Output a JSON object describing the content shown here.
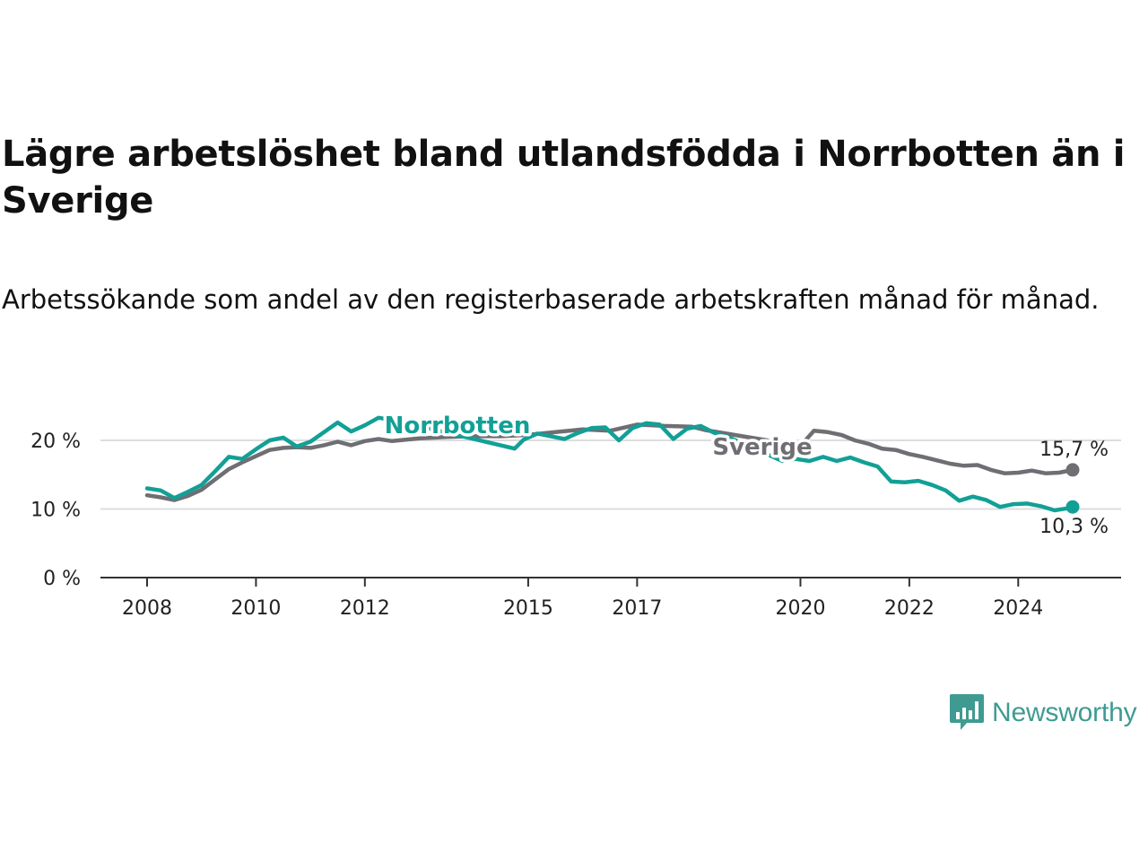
{
  "title": "Lägre arbetslöshet bland utlandsfödda i Norrbotten än i Sverige",
  "subtitle": "Arbetssökande som andel av den registerbaserade arbetskraften månad för månad.",
  "brand": {
    "name": "Newsworthy",
    "color": "#3f9b92",
    "icon": "newsworthy-logo-icon"
  },
  "colors": {
    "Norrbotten": "#12a096",
    "Sverige": "#6f6e73",
    "grid": "#dddddd",
    "axis": "#333333"
  },
  "chart_data": {
    "type": "line",
    "title": "Lägre arbetslöshet bland utlandsfödda i Norrbotten än i Sverige",
    "subtitle": "Arbetssökande som andel av den registerbaserade arbetskraften månad för månad.",
    "xlabel": "",
    "ylabel": "",
    "x_ticks": [
      "2008",
      "2010",
      "2012",
      "2015",
      "2017",
      "2020",
      "2022",
      "2024"
    ],
    "y_ticks": [
      "0 %",
      "10 %",
      "20 %"
    ],
    "ylim": [
      0,
      25
    ],
    "grid": "horizontal",
    "legend": "inline labels",
    "series": [
      {
        "name": "Norrbotten",
        "end_label": "10,3 %",
        "points": [
          [
            "2008-01",
            13.0
          ],
          [
            "2008-04",
            12.7
          ],
          [
            "2008-07",
            11.6
          ],
          [
            "2008-10",
            12.5
          ],
          [
            "2009-01",
            13.5
          ],
          [
            "2009-04",
            15.5
          ],
          [
            "2009-07",
            17.6
          ],
          [
            "2009-10",
            17.3
          ],
          [
            "2010-01",
            18.7
          ],
          [
            "2010-04",
            20.0
          ],
          [
            "2010-07",
            20.4
          ],
          [
            "2010-10",
            19.1
          ],
          [
            "2011-01",
            19.8
          ],
          [
            "2011-04",
            21.2
          ],
          [
            "2011-07",
            22.6
          ],
          [
            "2011-10",
            21.3
          ],
          [
            "2012-01",
            22.2
          ],
          [
            "2012-04",
            23.3
          ],
          [
            "2012-07",
            23.0
          ],
          [
            "2014-10",
            18.8
          ],
          [
            "2014-12",
            20.1
          ],
          [
            "2015-03",
            21.0
          ],
          [
            "2015-06",
            20.6
          ],
          [
            "2015-09",
            20.2
          ],
          [
            "2015-12",
            21.1
          ],
          [
            "2016-03",
            21.8
          ],
          [
            "2016-06",
            21.9
          ],
          [
            "2016-09",
            20.0
          ],
          [
            "2016-12",
            21.8
          ],
          [
            "2017-03",
            22.5
          ],
          [
            "2017-06",
            22.3
          ],
          [
            "2017-09",
            20.2
          ],
          [
            "2017-12",
            21.7
          ],
          [
            "2018-03",
            22.1
          ],
          [
            "2018-06",
            21.1
          ],
          [
            "2018-09",
            20.5
          ],
          [
            "2019-09",
            17.0
          ],
          [
            "2019-12",
            17.3
          ],
          [
            "2020-03",
            17.0
          ],
          [
            "2020-06",
            17.6
          ],
          [
            "2020-09",
            17.0
          ],
          [
            "2020-12",
            17.5
          ],
          [
            "2021-03",
            16.8
          ],
          [
            "2021-06",
            16.2
          ],
          [
            "2021-09",
            14.0
          ],
          [
            "2021-12",
            13.9
          ],
          [
            "2022-03",
            14.1
          ],
          [
            "2022-06",
            13.5
          ],
          [
            "2022-09",
            12.7
          ],
          [
            "2022-12",
            11.2
          ],
          [
            "2023-03",
            11.8
          ],
          [
            "2023-06",
            11.3
          ],
          [
            "2023-09",
            10.3
          ],
          [
            "2023-12",
            10.7
          ],
          [
            "2024-03",
            10.8
          ],
          [
            "2024-06",
            10.4
          ],
          [
            "2024-09",
            9.8
          ],
          [
            "2024-12",
            10.1
          ],
          [
            "2025-01",
            10.3
          ]
        ]
      },
      {
        "name": "Sverige",
        "end_label": "15,7 %",
        "points": [
          [
            "2008-01",
            12.0
          ],
          [
            "2008-04",
            11.7
          ],
          [
            "2008-07",
            11.3
          ],
          [
            "2008-10",
            11.9
          ],
          [
            "2009-01",
            12.8
          ],
          [
            "2009-04",
            14.3
          ],
          [
            "2009-07",
            15.8
          ],
          [
            "2009-10",
            16.8
          ],
          [
            "2010-01",
            17.7
          ],
          [
            "2010-04",
            18.6
          ],
          [
            "2010-07",
            18.9
          ],
          [
            "2010-10",
            19.0
          ],
          [
            "2011-01",
            18.9
          ],
          [
            "2011-04",
            19.3
          ],
          [
            "2011-07",
            19.8
          ],
          [
            "2011-10",
            19.3
          ],
          [
            "2012-01",
            19.9
          ],
          [
            "2012-04",
            20.2
          ],
          [
            "2012-07",
            19.9
          ],
          [
            "2013-01",
            20.3
          ],
          [
            "2013-07",
            20.5
          ],
          [
            "2014-01",
            20.6
          ],
          [
            "2014-07",
            20.6
          ],
          [
            "2015-01",
            20.8
          ],
          [
            "2015-07",
            21.2
          ],
          [
            "2016-01",
            21.6
          ],
          [
            "2016-07",
            21.4
          ],
          [
            "2017-01",
            22.3
          ],
          [
            "2017-07",
            22.1
          ],
          [
            "2018-01",
            22.0
          ],
          [
            "2018-04",
            21.5
          ],
          [
            "2020-01",
            19.2
          ],
          [
            "2020-04",
            21.4
          ],
          [
            "2020-07",
            21.2
          ],
          [
            "2020-10",
            20.8
          ],
          [
            "2021-01",
            20.0
          ],
          [
            "2021-04",
            19.5
          ],
          [
            "2021-07",
            18.8
          ],
          [
            "2021-10",
            18.6
          ],
          [
            "2022-01",
            18.0
          ],
          [
            "2022-04",
            17.6
          ],
          [
            "2022-07",
            17.1
          ],
          [
            "2022-10",
            16.6
          ],
          [
            "2023-01",
            16.3
          ],
          [
            "2023-04",
            16.4
          ],
          [
            "2023-07",
            15.7
          ],
          [
            "2023-10",
            15.2
          ],
          [
            "2024-01",
            15.3
          ],
          [
            "2024-04",
            15.6
          ],
          [
            "2024-07",
            15.2
          ],
          [
            "2024-10",
            15.3
          ],
          [
            "2025-01",
            15.7
          ]
        ]
      }
    ]
  }
}
